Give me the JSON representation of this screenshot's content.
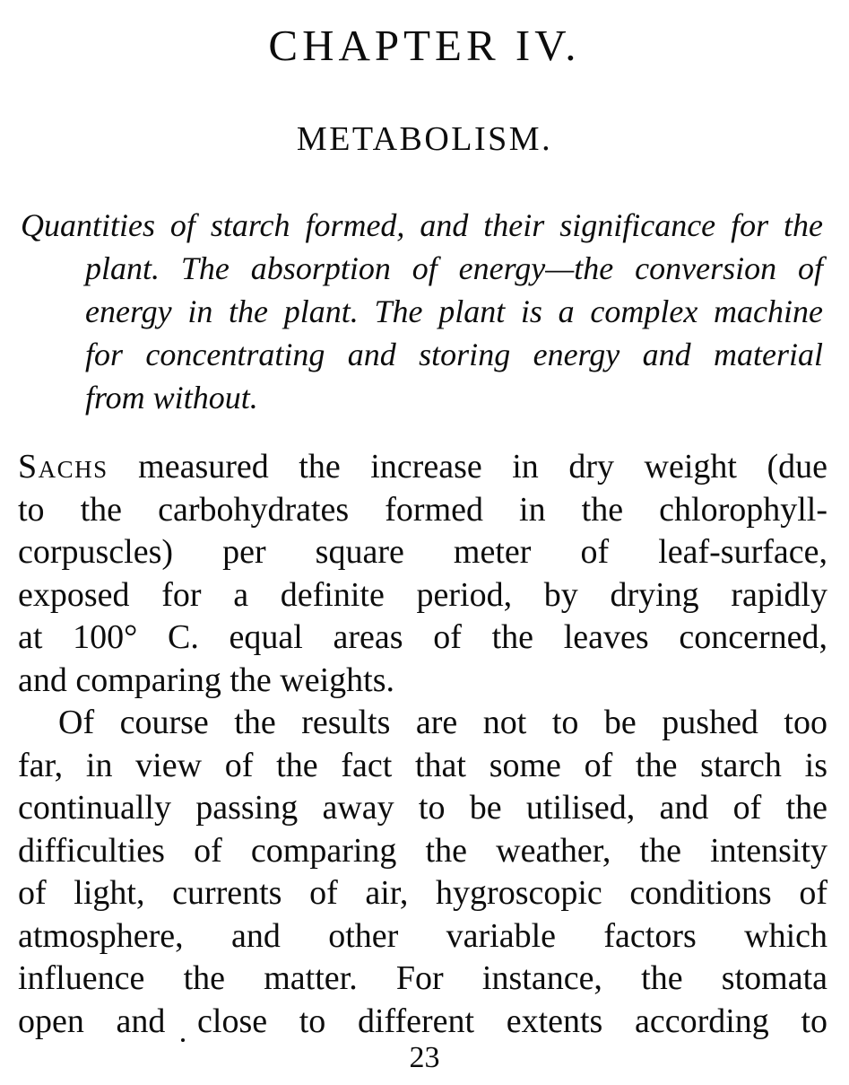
{
  "page": {
    "chapter_title": "CHAPTER IV.",
    "section_title": "METABOLISM.",
    "page_number": "23"
  },
  "summary": {
    "lines": [
      "Quantities of starch formed, and their significance for the",
      "plant.  The absorption of energy—the conversion of",
      "energy in the plant.  The plant is a complex machine",
      "for concentrating and storing energy and material",
      "from without."
    ]
  },
  "paragraphs": [
    {
      "lead_smallcaps": "Sachs",
      "lines": [
        " measured the increase in dry weight (due",
        "to the carbohydrates formed in the chlorophyll-",
        "corpuscles) per square meter of leaf-surface,",
        "exposed for a definite period, by drying rapidly",
        "at 100° C. equal areas of the leaves concerned,",
        "and comparing the weights."
      ],
      "indent_first": false,
      "last_line_left": true
    },
    {
      "lines": [
        "Of course the results are not to be pushed too",
        "far, in view of the fact that some of the starch is",
        "continually passing away to be utilised, and of the",
        "difficulties of comparing the weather, the intensity",
        "of light, currents of air, hygroscopic conditions of",
        "atmosphere, and other variable factors which",
        "influence the matter.  For instance, the stomata",
        "open and close to different extents according to"
      ],
      "indent_first": true,
      "last_line_left": false
    }
  ]
}
